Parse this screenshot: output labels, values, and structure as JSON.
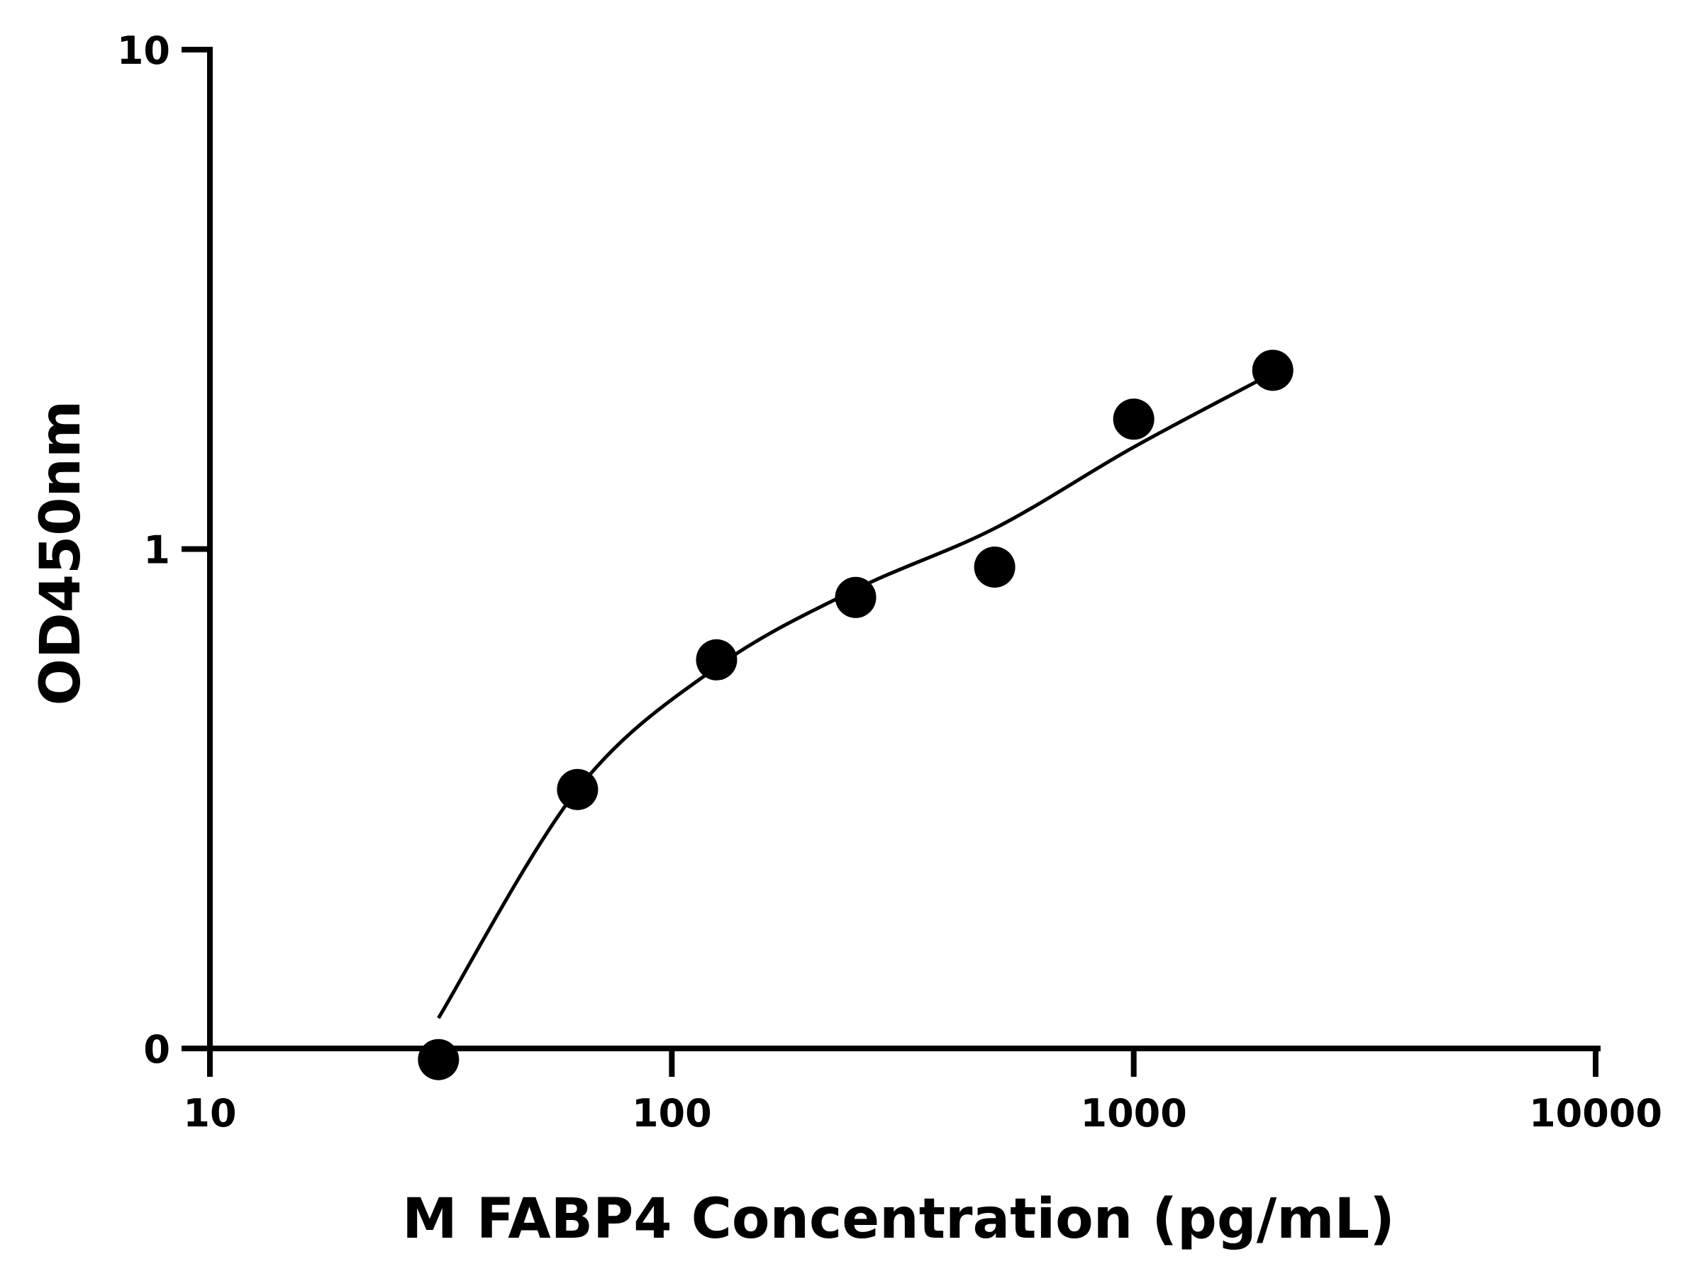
{
  "chart_data": {
    "type": "scatter",
    "title": "",
    "xlabel": "M FABP4 Concentration (pg/mL)",
    "ylabel": "OD450nm",
    "x_scale": "log",
    "y_scale": "log",
    "xlim": [
      10,
      10000
    ],
    "ylim": [
      0.1,
      10
    ],
    "x_ticks": [
      10,
      100,
      1000,
      10000
    ],
    "x_tick_labels": [
      "10",
      "100",
      "1000",
      "10000"
    ],
    "y_ticks": [
      0.1,
      1,
      10
    ],
    "y_tick_labels": [
      "0",
      "1",
      "10"
    ],
    "y_axis_origin_label": "0",
    "grid": false,
    "legend": "none",
    "series": [
      {
        "mark": "points",
        "x": [
          31.25,
          62.5,
          125,
          250,
          500,
          1000,
          2000
        ],
        "y": [
          0.095,
          0.33,
          0.6,
          0.8,
          0.92,
          1.82,
          2.28
        ]
      },
      {
        "mark": "fit-line",
        "x": [
          31.25,
          62.5,
          125,
          250,
          500,
          1000,
          2000
        ],
        "y": [
          0.115,
          0.33,
          0.58,
          0.83,
          1.1,
          1.6,
          2.25
        ]
      }
    ],
    "colors": {
      "points": "#000000",
      "line": "#000000",
      "axes": "#000000"
    }
  }
}
